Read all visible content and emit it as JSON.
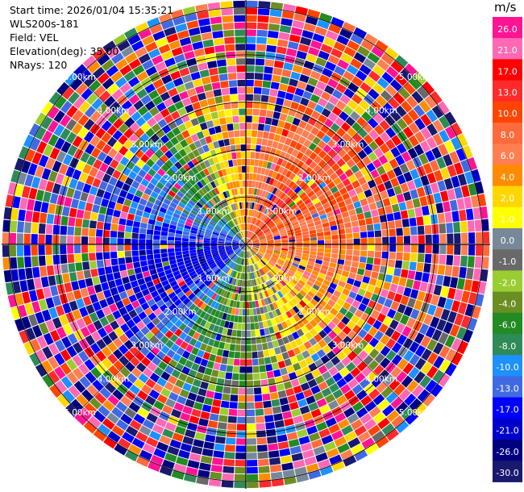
{
  "header": {
    "start_time": "Start time: 2026/01/04 15:35:21",
    "instrument": "WLS200s-181",
    "field": "Field: VEL",
    "elevation": "Elevation(deg): 35.00",
    "nrays": "NRays: 120"
  },
  "colorbar": {
    "title": "m/s",
    "labels": [
      "26.0",
      "21.0",
      "17.0",
      "13.0",
      "10.0",
      "8.0",
      "6.0",
      "4.0",
      "2.0",
      "1.0",
      "0.0",
      "-1.0",
      "-2.0",
      "-4.0",
      "-6.0",
      "-8.0",
      "-10.0",
      "-13.0",
      "-17.0",
      "-21.0",
      "-26.0",
      "-30.0"
    ],
    "colors": [
      "#ff1493",
      "#ff69b4",
      "#ff0000",
      "#ff2a2a",
      "#ff4500",
      "#ff6a3d",
      "#ff7f50",
      "#ff8c00",
      "#ffd700",
      "#ffff00",
      "#778899",
      "#696969",
      "#9acd32",
      "#6b8e23",
      "#228b22",
      "#2e8b57",
      "#1e90ff",
      "#4169e1",
      "#0000ff",
      "#0000cd",
      "#000080",
      "#191970"
    ]
  },
  "chart_data": {
    "type": "heatmap",
    "projection": "polar-ppi",
    "field": "VEL",
    "units": "m/s",
    "elevation_deg": 35.0,
    "nrays": 120,
    "range_max_km": 5.0,
    "range_rings_km": [
      1.0,
      2.0,
      3.0,
      4.0,
      5.0
    ],
    "ring_labels": [
      "1.00km",
      "2.00km",
      "3.00km",
      "4.00km",
      "5.00km"
    ],
    "color_levels": [
      -30,
      -26,
      -21,
      -17,
      -13,
      -10,
      -8,
      -6,
      -4,
      -2,
      -1,
      0,
      1,
      2,
      4,
      6,
      8,
      10,
      13,
      17,
      21,
      26
    ],
    "near_field_pattern": [
      {
        "azimuth_deg": 45,
        "velocity_ms": 12
      },
      {
        "azimuth_deg": 75,
        "velocity_ms": 9
      },
      {
        "azimuth_deg": 135,
        "velocity_ms": 4
      },
      {
        "azimuth_deg": 200,
        "velocity_ms": -5
      },
      {
        "azimuth_deg": 250,
        "velocity_ms": -18
      },
      {
        "azimuth_deg": 315,
        "velocity_ms": -7
      },
      {
        "azimuth_deg": 345,
        "velocity_ms": 3
      }
    ],
    "far_field": "noise"
  }
}
